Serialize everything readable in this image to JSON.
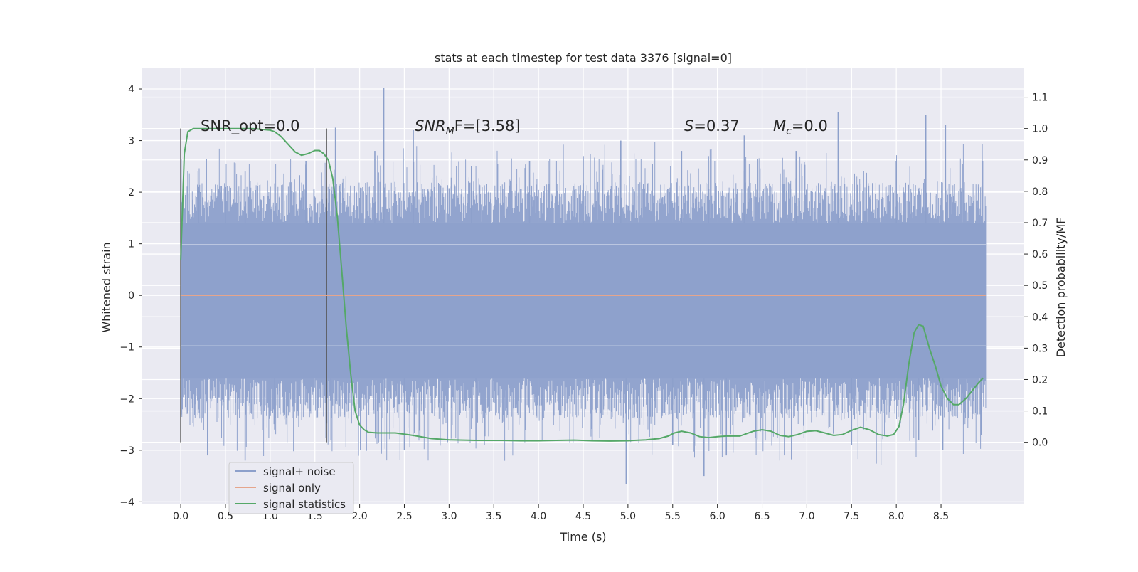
{
  "chart_data": {
    "type": "line",
    "title": "stats at each timestep for test data 3376 [signal=0]",
    "xlabel": "Time (s)",
    "ylabel": "Whitened strain",
    "ylabel_right": "Detection probability/MF",
    "xlim": [
      -0.43,
      9.43
    ],
    "ylim": [
      -4.05,
      4.4
    ],
    "ylim_right": [
      -0.198,
      1.192
    ],
    "x_ticks": [
      "0.0",
      "0.5",
      "1.0",
      "1.5",
      "2.0",
      "2.5",
      "3.0",
      "3.5",
      "4.0",
      "4.5",
      "5.0",
      "5.5",
      "6.0",
      "6.5",
      "7.0",
      "7.5",
      "8.0",
      "8.5"
    ],
    "y_ticks": [
      "4",
      "3",
      "2",
      "1",
      "0",
      "−1",
      "−2",
      "−3",
      "−4"
    ],
    "y_right_ticks": [
      "1.1",
      "1.0",
      "0.9",
      "0.8",
      "0.7",
      "0.6",
      "0.5",
      "0.4",
      "0.3",
      "0.2",
      "0.1",
      "0.0"
    ],
    "grid": true,
    "legend_position": "lower-left",
    "annotations": {
      "snr_opt": "SNR_opt=0.0",
      "snr_mf_base": "SNR",
      "snr_mf_sub": "M",
      "snr_mf_rest": "F=[3.58]",
      "s_italic": "S",
      "s_rest": "=0.37",
      "mc_base": "M",
      "mc_sub": "c",
      "mc_rest": "=0.0"
    },
    "vlines": [
      0.0,
      1.63
    ],
    "series": [
      {
        "name": "signal+ noise",
        "color": "#8da0cb",
        "x_range": [
          0.0,
          9.0
        ],
        "band": [
          -1.6,
          1.4
        ],
        "peaks": [
          {
            "x": 0.2,
            "y": 2.1
          },
          {
            "x": 0.5,
            "y": 2.1
          },
          {
            "x": 0.72,
            "y": 2.4
          },
          {
            "x": 1.4,
            "y": 2.6
          },
          {
            "x": 1.73,
            "y": 3.25
          },
          {
            "x": 2.17,
            "y": 2.8
          },
          {
            "x": 2.27,
            "y": 4.02
          },
          {
            "x": 2.6,
            "y": 3.2
          },
          {
            "x": 3.25,
            "y": 2.5
          },
          {
            "x": 3.9,
            "y": 2.6
          },
          {
            "x": 4.5,
            "y": 2.7
          },
          {
            "x": 4.92,
            "y": 3.0
          },
          {
            "x": 5.6,
            "y": 2.8
          },
          {
            "x": 5.9,
            "y": 2.7
          },
          {
            "x": 6.3,
            "y": 3.1
          },
          {
            "x": 6.88,
            "y": 2.8
          },
          {
            "x": 7.35,
            "y": 3.55
          },
          {
            "x": 8.0,
            "y": 2.6
          },
          {
            "x": 8.33,
            "y": 3.5
          },
          {
            "x": 8.55,
            "y": 3.3
          }
        ],
        "troughs": [
          {
            "x": 0.3,
            "y": -3.1
          },
          {
            "x": 0.72,
            "y": -3.2
          },
          {
            "x": 1.05,
            "y": -2.6
          },
          {
            "x": 1.68,
            "y": -2.8
          },
          {
            "x": 2.5,
            "y": -3.0
          },
          {
            "x": 3.3,
            "y": -2.8
          },
          {
            "x": 4.6,
            "y": -2.8
          },
          {
            "x": 4.98,
            "y": -3.65
          },
          {
            "x": 5.5,
            "y": -2.9
          },
          {
            "x": 5.85,
            "y": -3.5
          },
          {
            "x": 6.1,
            "y": -3.1
          },
          {
            "x": 6.75,
            "y": -3.1
          },
          {
            "x": 7.5,
            "y": -2.9
          },
          {
            "x": 8.25,
            "y": -2.8
          },
          {
            "x": 8.52,
            "y": -3.0
          },
          {
            "x": 8.95,
            "y": -2.7
          }
        ]
      },
      {
        "name": "signal only",
        "color": "#e5a58c",
        "x": [
          0.0,
          9.0
        ],
        "y": [
          0.0,
          0.0
        ]
      },
      {
        "name": "signal statistics",
        "color": "#55a868",
        "axis": "right",
        "x": [
          0.0,
          0.04,
          0.08,
          0.14,
          0.2,
          0.3,
          0.5,
          0.8,
          1.0,
          1.05,
          1.12,
          1.2,
          1.28,
          1.35,
          1.42,
          1.5,
          1.55,
          1.6,
          1.65,
          1.7,
          1.75,
          1.8,
          1.85,
          1.9,
          1.95,
          2.0,
          2.05,
          2.1,
          2.2,
          2.4,
          2.6,
          2.8,
          3.0,
          3.3,
          3.6,
          3.8,
          4.0,
          4.2,
          4.4,
          4.6,
          4.8,
          5.0,
          5.2,
          5.35,
          5.45,
          5.52,
          5.6,
          5.7,
          5.8,
          5.9,
          6.0,
          6.1,
          6.25,
          6.4,
          6.5,
          6.6,
          6.7,
          6.8,
          6.9,
          7.0,
          7.1,
          7.2,
          7.3,
          7.4,
          7.5,
          7.6,
          7.7,
          7.8,
          7.9,
          7.97,
          8.03,
          8.08,
          8.14,
          8.2,
          8.25,
          8.3,
          8.37,
          8.44,
          8.5,
          8.57,
          8.64,
          8.7,
          8.78,
          8.85,
          8.92,
          8.97
        ],
        "y": [
          0.58,
          0.92,
          0.99,
          1.0,
          1.0,
          1.0,
          1.0,
          1.0,
          0.995,
          0.99,
          0.975,
          0.95,
          0.925,
          0.915,
          0.92,
          0.93,
          0.93,
          0.92,
          0.9,
          0.84,
          0.72,
          0.55,
          0.37,
          0.22,
          0.1,
          0.055,
          0.04,
          0.032,
          0.03,
          0.03,
          0.022,
          0.012,
          0.008,
          0.006,
          0.006,
          0.005,
          0.005,
          0.006,
          0.007,
          0.005,
          0.004,
          0.005,
          0.008,
          0.012,
          0.02,
          0.03,
          0.035,
          0.03,
          0.018,
          0.015,
          0.018,
          0.02,
          0.02,
          0.035,
          0.04,
          0.035,
          0.022,
          0.018,
          0.025,
          0.035,
          0.037,
          0.03,
          0.022,
          0.025,
          0.038,
          0.048,
          0.04,
          0.025,
          0.02,
          0.025,
          0.05,
          0.12,
          0.25,
          0.35,
          0.375,
          0.37,
          0.3,
          0.24,
          0.18,
          0.14,
          0.12,
          0.12,
          0.14,
          0.165,
          0.19,
          0.205
        ]
      }
    ]
  }
}
